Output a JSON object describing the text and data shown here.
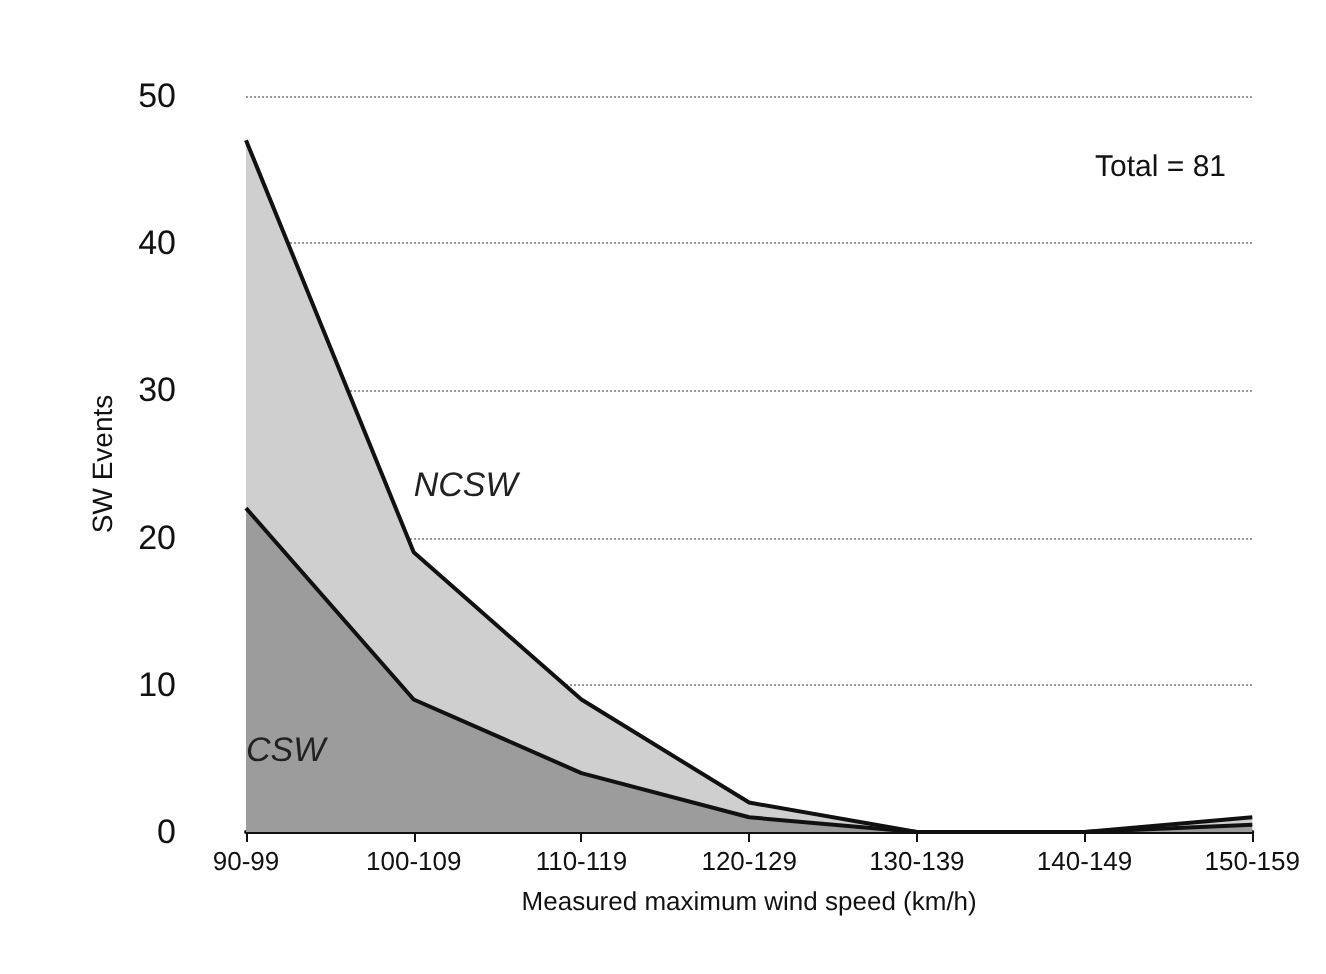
{
  "chart_data": {
    "type": "area",
    "stacked": true,
    "xlabel": "Measured maximum wind speed (km/h)",
    "ylabel": "SW Events",
    "categories": [
      "90-99",
      "100-109",
      "110-119",
      "120-129",
      "130-139",
      "140-149",
      "150-159"
    ],
    "series": [
      {
        "name": "CSW",
        "color": "#9c9c9c",
        "values": [
          22,
          9,
          4,
          1,
          0,
          0,
          0.5
        ]
      },
      {
        "name": "NCSW",
        "color": "#cfcfcf",
        "values": [
          25,
          10,
          5,
          1,
          0,
          0,
          0.5
        ]
      }
    ],
    "ylim": [
      0,
      50
    ],
    "yticks": [
      0,
      10,
      20,
      30,
      40,
      50
    ],
    "grid": "y",
    "legend": false,
    "marker": "none",
    "line_style": "solid",
    "annotations": [
      "Total = 81"
    ]
  }
}
